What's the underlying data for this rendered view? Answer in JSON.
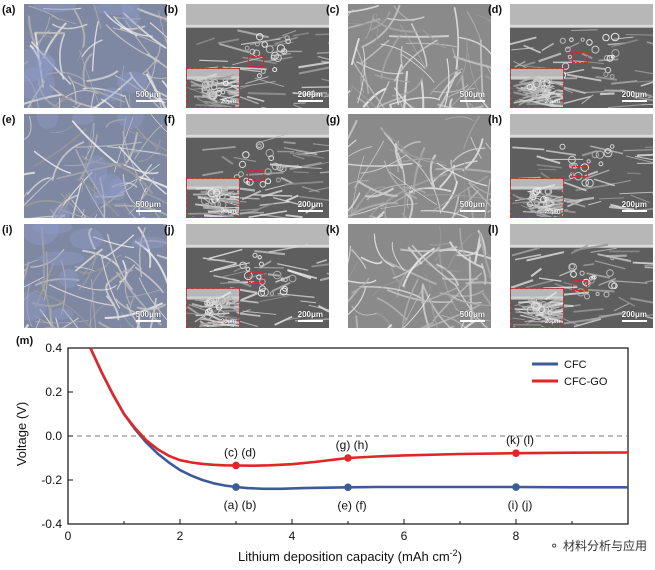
{
  "panels": [
    {
      "label": "(a)",
      "scale": "500μm",
      "kind": "top",
      "coated": true
    },
    {
      "label": "(b)",
      "scale": "200μm",
      "kind": "cross",
      "inset": "20μm"
    },
    {
      "label": "(c)",
      "scale": "500μm",
      "kind": "top",
      "coated": false
    },
    {
      "label": "(d)",
      "scale": "200μm",
      "kind": "cross",
      "inset": "20μm"
    },
    {
      "label": "(e)",
      "scale": "500μm",
      "kind": "top",
      "coated": true
    },
    {
      "label": "(f)",
      "scale": "200μm",
      "kind": "cross",
      "inset": "20μm"
    },
    {
      "label": "(g)",
      "scale": "500μm",
      "kind": "top",
      "coated": false
    },
    {
      "label": "(h)",
      "scale": "200μm",
      "kind": "cross",
      "inset": "20μm"
    },
    {
      "label": "(i)",
      "scale": "500μm",
      "kind": "top",
      "coated": true
    },
    {
      "label": "(j)",
      "scale": "200μm",
      "kind": "cross",
      "inset": "20μm"
    },
    {
      "label": "(k)",
      "scale": "500μm",
      "kind": "top",
      "coated": false
    },
    {
      "label": "(l)",
      "scale": "200μm",
      "kind": "cross",
      "inset": "20μm"
    }
  ],
  "chart_data": {
    "type": "line",
    "panel_label": "(m)",
    "xlabel": "Lithium deposition capacity (mAh cm",
    "xlabel_sup": "-2",
    "xlabel_end": ")",
    "ylabel": "Voltage (V)",
    "xlim": [
      0,
      10
    ],
    "ylim": [
      -0.4,
      0.4
    ],
    "xticks": [
      0,
      2,
      4,
      6,
      8
    ],
    "yticks": [
      0.4,
      0.2,
      0.0,
      -0.2,
      -0.4
    ],
    "ytick_labels": [
      "0.4",
      "0.2",
      "0.0",
      "-0.2",
      "-0.4"
    ],
    "reference_line": 0.0,
    "legend_position": "top-right",
    "series": [
      {
        "name": "CFC",
        "color": "#3d5a99",
        "x": [
          0.4,
          0.6,
          0.8,
          1.0,
          1.2,
          1.4,
          1.6,
          1.8,
          2.0,
          2.2,
          2.4,
          2.6,
          2.8,
          3.0,
          3.2,
          3.5,
          3.8,
          4.2,
          4.6,
          5.0,
          5.5,
          6.0,
          7.0,
          8.0,
          9.0,
          10.0
        ],
        "y": [
          0.4,
          0.29,
          0.19,
          0.1,
          0.03,
          -0.03,
          -0.08,
          -0.12,
          -0.155,
          -0.18,
          -0.2,
          -0.215,
          -0.225,
          -0.232,
          -0.237,
          -0.24,
          -0.24,
          -0.237,
          -0.235,
          -0.233,
          -0.232,
          -0.232,
          -0.232,
          -0.232,
          -0.233,
          -0.233
        ],
        "markers": [
          {
            "x": 3.0,
            "y": -0.232,
            "label": "(a) (b)"
          },
          {
            "x": 5.0,
            "y": -0.233,
            "label": "(e) (f)"
          },
          {
            "x": 8.0,
            "y": -0.232,
            "label": "(i) (j)"
          }
        ]
      },
      {
        "name": "CFC-GO",
        "color": "#e02626",
        "x": [
          0.4,
          0.6,
          0.8,
          1.0,
          1.2,
          1.4,
          1.6,
          1.8,
          2.0,
          2.2,
          2.4,
          2.6,
          2.8,
          3.0,
          3.3,
          3.6,
          4.0,
          4.4,
          4.8,
          5.0,
          5.5,
          6.0,
          7.0,
          8.0,
          9.0,
          10.0
        ],
        "y": [
          0.4,
          0.29,
          0.19,
          0.1,
          0.035,
          -0.02,
          -0.06,
          -0.09,
          -0.11,
          -0.12,
          -0.127,
          -0.131,
          -0.133,
          -0.134,
          -0.135,
          -0.133,
          -0.128,
          -0.118,
          -0.106,
          -0.1,
          -0.093,
          -0.088,
          -0.082,
          -0.078,
          -0.076,
          -0.075
        ],
        "markers": [
          {
            "x": 3.0,
            "y": -0.134,
            "label": "(c) (d)"
          },
          {
            "x": 5.0,
            "y": -0.1,
            "label": "(g) (h)"
          },
          {
            "x": 8.0,
            "y": -0.078,
            "label": "(k) (l)"
          }
        ]
      }
    ]
  },
  "watermark": "材料分析与应用",
  "watermark_icon": "wechat-icon"
}
